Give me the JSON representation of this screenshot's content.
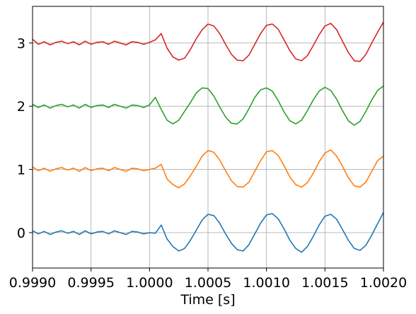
{
  "chart_data": {
    "type": "line",
    "title": "",
    "xlabel": "Time [s]",
    "ylabel": "",
    "xlim": [
      0.999,
      1.002
    ],
    "ylim": [
      -0.56,
      3.58
    ],
    "xticks": [
      0.999,
      0.9995,
      1.0,
      1.0005,
      1.001,
      1.0015,
      1.002
    ],
    "xtick_labels": [
      "0.9990",
      "0.9995",
      "1.0000",
      "1.0005",
      "1.0010",
      "1.0015",
      "1.0020"
    ],
    "yticks": [
      0,
      1,
      2,
      3
    ],
    "ytick_labels": [
      "0",
      "1",
      "2",
      "3"
    ],
    "grid": true,
    "series": [
      {
        "color": "#1f77b4",
        "x": [
          0.999,
          0.99905,
          0.9991,
          0.99915,
          0.9992,
          0.99925,
          0.9993,
          0.99935,
          0.9994,
          0.99945,
          0.9995,
          0.99955,
          0.9996,
          0.99965,
          0.9997,
          0.99975,
          0.9998,
          0.99985,
          0.9999,
          0.99995,
          1.0,
          1.00005,
          1.0001,
          1.00015,
          1.0002,
          1.00025,
          1.0003,
          1.00035,
          1.0004,
          1.00045,
          1.0005,
          1.00055,
          1.0006,
          1.00065,
          1.0007,
          1.00075,
          1.0008,
          1.00085,
          1.0009,
          1.00095,
          1.001,
          1.00105,
          1.0011,
          1.00115,
          1.0012,
          1.00125,
          1.0013,
          1.00135,
          1.0014,
          1.00145,
          1.0015,
          1.00155,
          1.0016,
          1.00165,
          1.0017,
          1.00175,
          1.0018,
          1.00185,
          1.0019,
          1.00195,
          1.002
        ],
        "values": [
          0.03,
          -0.02,
          0.02,
          -0.03,
          0.01,
          0.03,
          -0.01,
          0.02,
          -0.03,
          0.03,
          -0.02,
          0.01,
          0.02,
          -0.02,
          0.03,
          0.0,
          -0.03,
          0.02,
          0.01,
          -0.02,
          0.0,
          -0.01,
          0.12,
          -0.1,
          -0.22,
          -0.29,
          -0.25,
          -0.12,
          0.04,
          0.2,
          0.29,
          0.27,
          0.15,
          -0.02,
          -0.17,
          -0.27,
          -0.29,
          -0.19,
          -0.02,
          0.15,
          0.28,
          0.3,
          0.22,
          0.06,
          -0.12,
          -0.25,
          -0.31,
          -0.22,
          -0.06,
          0.12,
          0.26,
          0.29,
          0.21,
          0.05,
          -0.12,
          -0.25,
          -0.28,
          -0.2,
          -0.04,
          0.14,
          0.32
        ]
      },
      {
        "color": "#ff7f0e",
        "x": [
          0.999,
          0.99905,
          0.9991,
          0.99915,
          0.9992,
          0.99925,
          0.9993,
          0.99935,
          0.9994,
          0.99945,
          0.9995,
          0.99955,
          0.9996,
          0.99965,
          0.9997,
          0.99975,
          0.9998,
          0.99985,
          0.9999,
          0.99995,
          1.0,
          1.00005,
          1.0001,
          1.00015,
          1.0002,
          1.00025,
          1.0003,
          1.00035,
          1.0004,
          1.00045,
          1.0005,
          1.00055,
          1.0006,
          1.00065,
          1.0007,
          1.00075,
          1.0008,
          1.00085,
          1.0009,
          1.00095,
          1.001,
          1.00105,
          1.0011,
          1.00115,
          1.0012,
          1.00125,
          1.0013,
          1.00135,
          1.0014,
          1.00145,
          1.0015,
          1.00155,
          1.0016,
          1.00165,
          1.0017,
          1.00175,
          1.0018,
          1.00185,
          1.0019,
          1.00195,
          1.002
        ],
        "values": [
          1.04,
          0.98,
          1.02,
          0.97,
          1.01,
          1.03,
          0.99,
          1.02,
          0.97,
          1.03,
          0.98,
          1.01,
          1.02,
          0.98,
          1.03,
          1.0,
          0.97,
          1.02,
          1.01,
          0.98,
          1.0,
          1.02,
          1.08,
          0.85,
          0.76,
          0.71,
          0.77,
          0.9,
          1.05,
          1.21,
          1.3,
          1.27,
          1.15,
          0.98,
          0.82,
          0.73,
          0.72,
          0.8,
          0.97,
          1.14,
          1.28,
          1.3,
          1.22,
          1.06,
          0.88,
          0.76,
          0.72,
          0.79,
          0.94,
          1.12,
          1.26,
          1.31,
          1.21,
          1.05,
          0.87,
          0.74,
          0.72,
          0.8,
          0.97,
          1.14,
          1.21
        ]
      },
      {
        "color": "#2ca02c",
        "x": [
          0.999,
          0.99905,
          0.9991,
          0.99915,
          0.9992,
          0.99925,
          0.9993,
          0.99935,
          0.9994,
          0.99945,
          0.9995,
          0.99955,
          0.9996,
          0.99965,
          0.9997,
          0.99975,
          0.9998,
          0.99985,
          0.9999,
          0.99995,
          1.0,
          1.00005,
          1.0001,
          1.00015,
          1.0002,
          1.00025,
          1.0003,
          1.00035,
          1.0004,
          1.00045,
          1.0005,
          1.00055,
          1.0006,
          1.00065,
          1.0007,
          1.00075,
          1.0008,
          1.00085,
          1.0009,
          1.00095,
          1.001,
          1.00105,
          1.0011,
          1.00115,
          1.0012,
          1.00125,
          1.0013,
          1.00135,
          1.0014,
          1.00145,
          1.0015,
          1.00155,
          1.0016,
          1.00165,
          1.0017,
          1.00175,
          1.0018,
          1.00185,
          1.0019,
          1.00195,
          1.002
        ],
        "values": [
          2.03,
          1.98,
          2.02,
          1.97,
          2.01,
          2.03,
          1.99,
          2.02,
          1.97,
          2.03,
          1.98,
          2.01,
          2.02,
          1.98,
          2.03,
          2.0,
          1.97,
          2.02,
          2.01,
          1.98,
          2.02,
          2.14,
          1.95,
          1.78,
          1.72,
          1.78,
          1.92,
          2.06,
          2.21,
          2.29,
          2.28,
          2.16,
          1.99,
          1.83,
          1.73,
          1.72,
          1.8,
          1.96,
          2.14,
          2.26,
          2.29,
          2.24,
          2.09,
          1.91,
          1.77,
          1.72,
          1.78,
          1.93,
          2.1,
          2.24,
          2.3,
          2.25,
          2.11,
          1.93,
          1.77,
          1.7,
          1.76,
          1.92,
          2.1,
          2.25,
          2.32
        ]
      },
      {
        "color": "#d62728",
        "x": [
          0.999,
          0.99905,
          0.9991,
          0.99915,
          0.9992,
          0.99925,
          0.9993,
          0.99935,
          0.9994,
          0.99945,
          0.9995,
          0.99955,
          0.9996,
          0.99965,
          0.9997,
          0.99975,
          0.9998,
          0.99985,
          0.9999,
          0.99995,
          1.0,
          1.00005,
          1.0001,
          1.00015,
          1.0002,
          1.00025,
          1.0003,
          1.00035,
          1.0004,
          1.00045,
          1.0005,
          1.00055,
          1.0006,
          1.00065,
          1.0007,
          1.00075,
          1.0008,
          1.00085,
          1.0009,
          1.00095,
          1.001,
          1.00105,
          1.0011,
          1.00115,
          1.0012,
          1.00125,
          1.0013,
          1.00135,
          1.0014,
          1.00145,
          1.0015,
          1.00155,
          1.0016,
          1.00165,
          1.0017,
          1.00175,
          1.0018,
          1.00185,
          1.0019,
          1.00195,
          1.002
        ],
        "values": [
          3.06,
          2.98,
          3.02,
          2.97,
          3.01,
          3.03,
          2.99,
          3.02,
          2.97,
          3.03,
          2.98,
          3.01,
          3.02,
          2.98,
          3.03,
          3.0,
          2.97,
          3.02,
          3.01,
          2.98,
          3.01,
          3.05,
          3.15,
          2.92,
          2.78,
          2.73,
          2.76,
          2.9,
          3.07,
          3.21,
          3.3,
          3.27,
          3.15,
          2.98,
          2.82,
          2.73,
          2.72,
          2.81,
          2.98,
          3.15,
          3.28,
          3.3,
          3.22,
          3.05,
          2.88,
          2.75,
          2.72,
          2.8,
          2.96,
          3.13,
          3.27,
          3.31,
          3.21,
          3.03,
          2.85,
          2.72,
          2.71,
          2.82,
          3.0,
          3.17,
          3.33
        ]
      }
    ]
  }
}
